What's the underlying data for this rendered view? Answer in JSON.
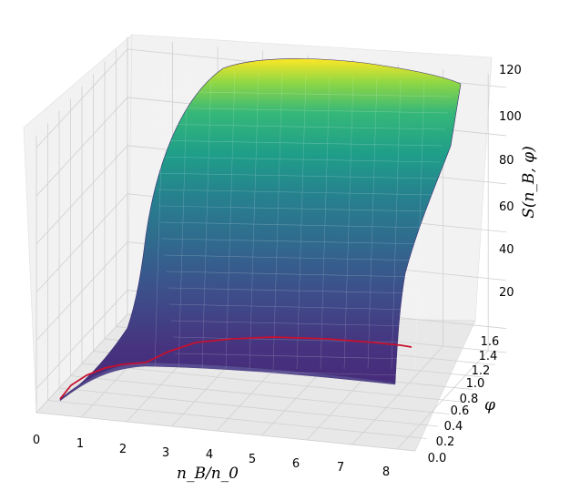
{
  "chart_data": {
    "type": "surface3d",
    "title": "",
    "xlabel": "n_B/n_0",
    "ylabel": "φ",
    "zlabel": "S(n_B, φ)",
    "xlim": [
      0,
      8.4
    ],
    "ylim": [
      0,
      1.6
    ],
    "zlim": [
      10,
      125
    ],
    "x_ticks": [
      "0",
      "1",
      "2",
      "3",
      "4",
      "5",
      "6",
      "7",
      "8"
    ],
    "y_ticks": [
      "0.0",
      "0.2",
      "0.4",
      "0.6",
      "0.8",
      "1.0",
      "1.2",
      "1.4",
      "1.6"
    ],
    "z_ticks": [
      "20",
      "40",
      "60",
      "80",
      "100",
      "120"
    ],
    "colormap": "viridis",
    "grid": true,
    "surface_corners": {
      "x_range": [
        0.5,
        8.0
      ],
      "phi_range": [
        0.0,
        1.6
      ]
    },
    "surface_profile_at_phi_max": {
      "x": [
        0.5,
        1.0,
        1.5,
        2.0,
        3.0,
        4.0,
        5.0,
        6.0,
        7.0,
        8.0
      ],
      "S": [
        12,
        30,
        55,
        95,
        118,
        120,
        120,
        118,
        116,
        115
      ]
    },
    "surface_profile_at_phi_min": {
      "x": [
        0.5,
        1.0,
        1.5,
        2.0,
        3.0,
        4.0,
        5.0,
        6.0,
        7.0,
        8.0
      ],
      "S": [
        4,
        7,
        9,
        10,
        10.5,
        10.8,
        10.5,
        10.2,
        10,
        9.8
      ]
    },
    "series": [
      {
        "color": "#c8102e",
        "x": [
          0.5,
          0.7,
          1.0,
          1.3,
          1.6,
          2.0,
          2.5,
          3.0,
          3.5,
          4.0,
          5.0,
          6.0,
          7.0,
          8.0
        ],
        "phi": [
          0.0,
          0.08,
          0.18,
          0.27,
          0.35,
          0.45,
          0.6,
          0.75,
          0.88,
          1.0,
          1.15,
          1.28,
          1.38,
          1.45
        ],
        "S": [
          10,
          10.5,
          11,
          11.2,
          11.3,
          11.4,
          11.3,
          11.2,
          11.1,
          11,
          10.8,
          10.6,
          10.4,
          10.2
        ]
      }
    ]
  }
}
